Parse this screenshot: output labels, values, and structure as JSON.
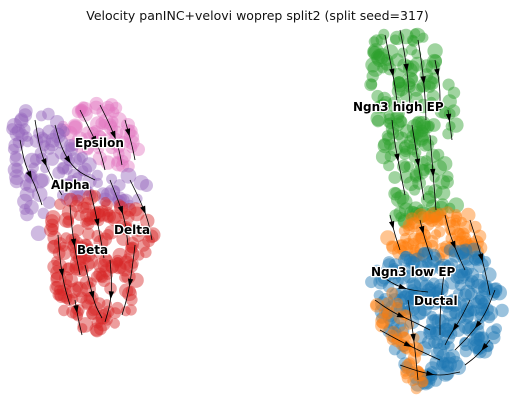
{
  "chart_data": {
    "type": "scatter",
    "title": "Velocity panINC+velovi woprep split2 (split seed=317)",
    "xlabel": "",
    "ylabel": "",
    "grid": false,
    "overlay": "velocity stream arrows",
    "cluster_labels": [
      "Epsilon",
      "Alpha",
      "Delta",
      "Beta",
      "Ngn3 high EP",
      "Ngn3 low EP",
      "Ductal"
    ],
    "cluster_colors": {
      "Epsilon": "#e377c2",
      "Alpha": "#9467bd",
      "Delta": "#d62728",
      "Beta": "#d62728",
      "Ngn3 high EP": "#2ca02c",
      "Ngn3 low EP": "#ff7f0e",
      "Ductal": "#1f77b4"
    }
  }
}
